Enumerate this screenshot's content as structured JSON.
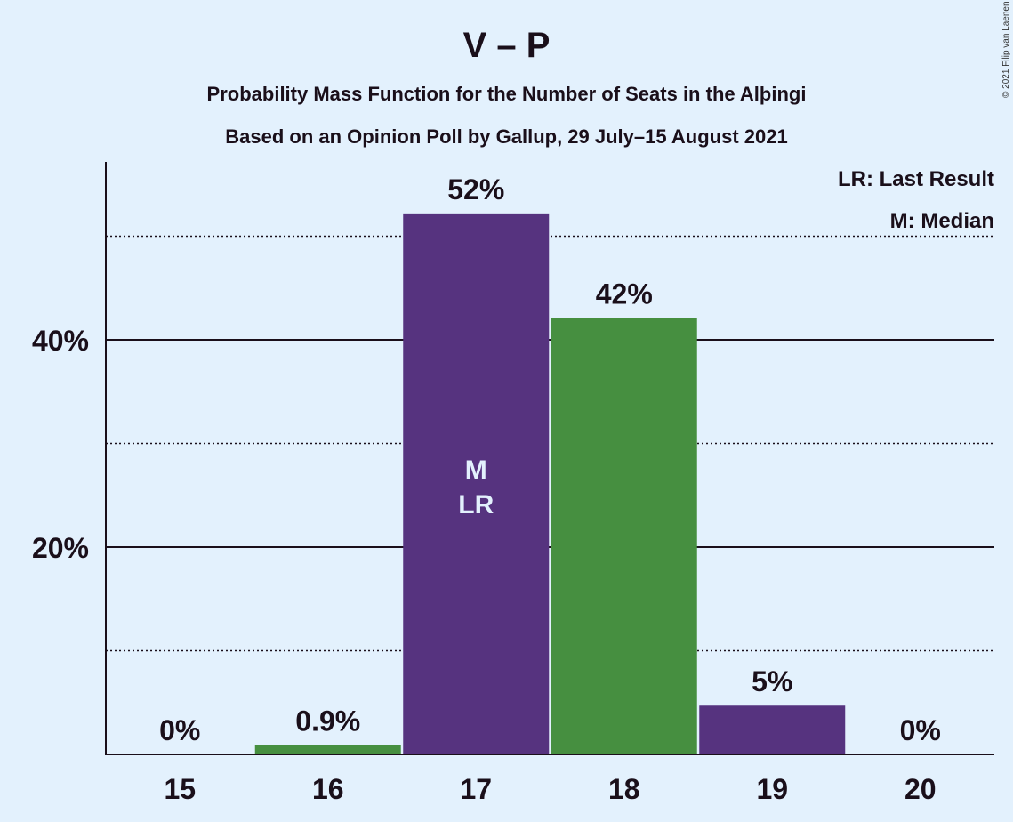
{
  "chart_data": {
    "type": "bar",
    "title": "V – P",
    "subtitle": "Probability Mass Function for the Number of Seats in the Alþingi",
    "subtitle2": "Based on an Opinion Poll by Gallup, 29 July–15 August 2021",
    "categories": [
      "15",
      "16",
      "17",
      "18",
      "19",
      "20"
    ],
    "values": [
      0,
      0.9,
      52.2,
      42.1,
      4.7,
      0
    ],
    "value_labels": [
      "0%",
      "0.9%",
      "52%",
      "42%",
      "5%",
      "0%"
    ],
    "bar_colors": [
      "#56337f",
      "#468f40",
      "#56337f",
      "#468f40",
      "#56337f",
      "#468f40"
    ],
    "y_ticks": [
      {
        "value": 20,
        "label": "20%"
      },
      {
        "value": 40,
        "label": "40%"
      }
    ],
    "minor_gridlines": [
      10,
      30,
      50
    ],
    "ylim": [
      0,
      57
    ],
    "median_category": "17",
    "last_result_category": "17",
    "median_marker": "M",
    "last_result_marker": "LR",
    "legend": [
      "LR: Last Result",
      "M: Median"
    ],
    "legend_position": "top-right",
    "copyright": "© 2021 Filip van Laenen"
  }
}
